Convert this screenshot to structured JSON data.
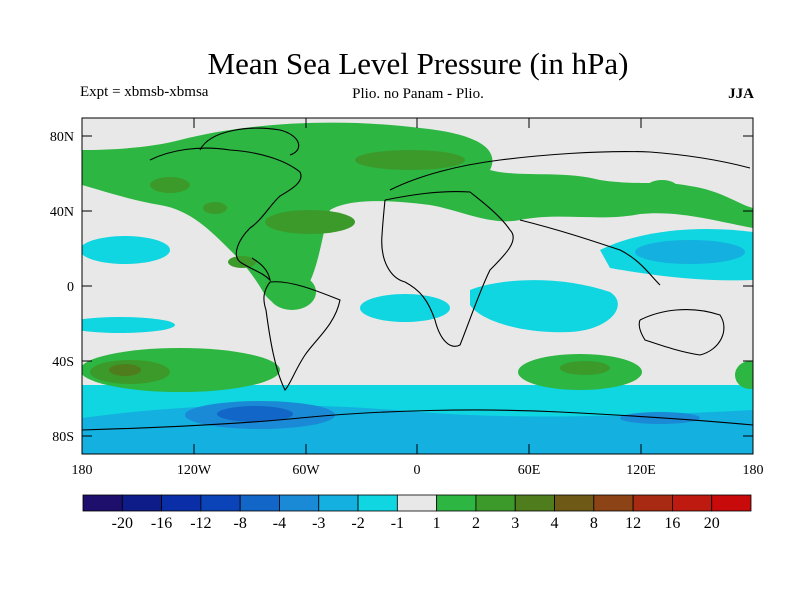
{
  "header": {
    "title": "Mean Sea Level Pressure (in hPa)",
    "experiment": "Expt = xbmsb-xbmsa",
    "subtitle": "Plio. no Panam - Plio.",
    "season": "JJA"
  },
  "axes": {
    "x_ticks": [
      "180",
      "120W",
      "60W",
      "0",
      "60E",
      "120E",
      "180"
    ],
    "y_ticks": [
      "80N",
      "40N",
      "0",
      "40S",
      "80S"
    ]
  },
  "colorbar": {
    "labels": [
      "-20",
      "-16",
      "-12",
      "-8",
      "-4",
      "-3",
      "-2",
      "-1",
      "1",
      "2",
      "3",
      "4",
      "8",
      "12",
      "16",
      "20"
    ],
    "colors": [
      "#1d0f6b",
      "#0e1c8a",
      "#0a2ea8",
      "#0b44b8",
      "#1166c8",
      "#1a8ad6",
      "#14b0e0",
      "#0fd6e0",
      "#e8e8e8",
      "#2db642",
      "#3c9a2a",
      "#4f7d1e",
      "#6e5a16",
      "#8c4316",
      "#a82a12",
      "#bf1a10",
      "#c80a0a"
    ]
  },
  "map": {
    "background_color": "#e8e8e8",
    "positive_colors": {
      "1": "#2db642",
      "2": "#3c9a2a",
      "3": "#4f7d1e"
    },
    "negative_colors": {
      "-1": "#0fd6e0",
      "-2": "#14b0e0",
      "-3": "#1a8ad6",
      "-4": "#1166c8"
    }
  }
}
